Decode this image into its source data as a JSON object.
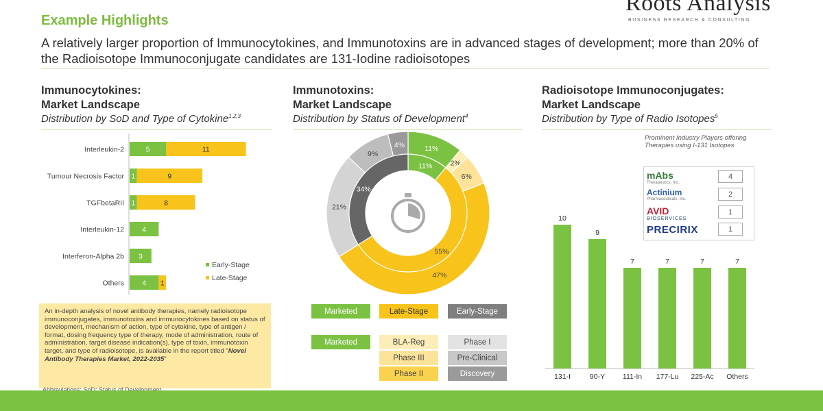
{
  "brand": {
    "name": "Roots Analysis",
    "tagline": "BUSINESS RESEARCH & CONSULTING"
  },
  "header": {
    "title": "Example Highlights",
    "subtitle": "A relatively larger proportion of Immunocytokines, and Immunotoxins are in advanced stages of development; more than 20% of the Radioisotope Immunoconjugate candidates are 131-Iodine radioisotopes"
  },
  "sections": {
    "left": {
      "title_line1": "Immunocytokines:",
      "title_line2": "Market Landscape",
      "desc": "Distribution by SoD and Type of Cytokine",
      "sup": "1,2,3"
    },
    "middle": {
      "title_line1": "Immunotoxins:",
      "title_line2": "Market Landscape",
      "desc": "Distribution by Status of Development",
      "sup": "4"
    },
    "right": {
      "title_line1": "Radioisotope Immunoconjugates:",
      "title_line2": "Market Landscape",
      "desc": "Distribution by Type of Radio Isotopes",
      "sup": "5"
    }
  },
  "note": {
    "text": "An in-depth analysis of novel antibody therapies, namely radioisotope immunoconjugates, immunotoxins and immunocytokines based on status of development, mechanism of action, type of cytokine, type of antigen / format, dosing frequency type of therapy, mode of administration, route of administration, target disease indication(s), type of toxin, immunotoxin target, and type of radioisotope, is available in the report titled “",
    "report": "Novel Antibody Therapies Market, 2022-2035",
    "end": "”"
  },
  "abbreviation": "Abbreviations: SoD: Status of Development",
  "colors": {
    "green": "#7cc242",
    "yellow": "#f8c31b",
    "dark_gray": "#666666",
    "mid_gray": "#999999",
    "light_gray": "#d4d4d4",
    "light_yellow": "#fde39a",
    "pale_yellow": "#fdeeb9"
  },
  "donut_icon": "stopwatch-icon",
  "donut_legend": {
    "row1": [
      "Marketed",
      "Late-Stage",
      "Early-Stage"
    ],
    "row2": {
      "marketed": "Marketed",
      "yellow": [
        "BLA-Reg",
        "Phase III",
        "Phase II"
      ],
      "gray": [
        "Phase I",
        "Pre-Clinical",
        "Discovery"
      ]
    }
  },
  "bar_legend": {
    "early": "Early-Stage",
    "late": "Late-Stage"
  },
  "players": {
    "title": "Prominent Industry Players offering Therapies using I-131 Isotopes",
    "items": [
      {
        "logo": "mAbs",
        "logo_sub": "Therapeutics, Inc.",
        "value": "4"
      },
      {
        "logo": "Actinium",
        "logo_sub": "Pharmaceuticals, Inc.",
        "value": "2"
      },
      {
        "logo": "AVID",
        "logo_sub": "BIOSERVICES",
        "value": "1"
      },
      {
        "logo": "PRECIRIX",
        "logo_sub": "",
        "value": "1"
      }
    ]
  },
  "chart_data": [
    {
      "type": "bar",
      "orientation": "horizontal",
      "stacked": true,
      "categories": [
        "Interleukin-2",
        "Tumour Necrosis Factor",
        "TGFbetaRII",
        "Interleukin-12",
        "Interferon-Alpha 2b",
        "Others"
      ],
      "series": [
        {
          "name": "Early-Stage",
          "values": [
            5,
            1,
            1,
            4,
            3,
            4
          ],
          "color": "#7cc242"
        },
        {
          "name": "Late-Stage",
          "values": [
            11,
            9,
            8,
            0,
            0,
            1
          ],
          "color": "#f8c31b"
        }
      ],
      "legend": "right"
    },
    {
      "type": "pie",
      "subtype": "nested-donut",
      "inner": {
        "labels": [
          "Marketed",
          "Late-Stage",
          "Early-Stage"
        ],
        "values": [
          11,
          55,
          34
        ],
        "value_labels": [
          "11%",
          "55%",
          "34%"
        ]
      },
      "outer": {
        "labels": [
          "Marketed",
          "BLA-Reg",
          "Phase III",
          "Phase II",
          "Phase I",
          "Pre-Clinical",
          "Discovery"
        ],
        "values": [
          11,
          2,
          6,
          47,
          21,
          9,
          4
        ],
        "value_labels": [
          "11%",
          "2%",
          "6%",
          "47%",
          "21%",
          "9%",
          "4%"
        ]
      }
    },
    {
      "type": "bar",
      "categories": [
        "131-I",
        "90-Y",
        "111-In",
        "177-Lu",
        "225-Ac",
        "Others"
      ],
      "values": [
        10,
        9,
        7,
        7,
        7,
        7
      ],
      "color": "#7cc242",
      "grid": false
    }
  ]
}
